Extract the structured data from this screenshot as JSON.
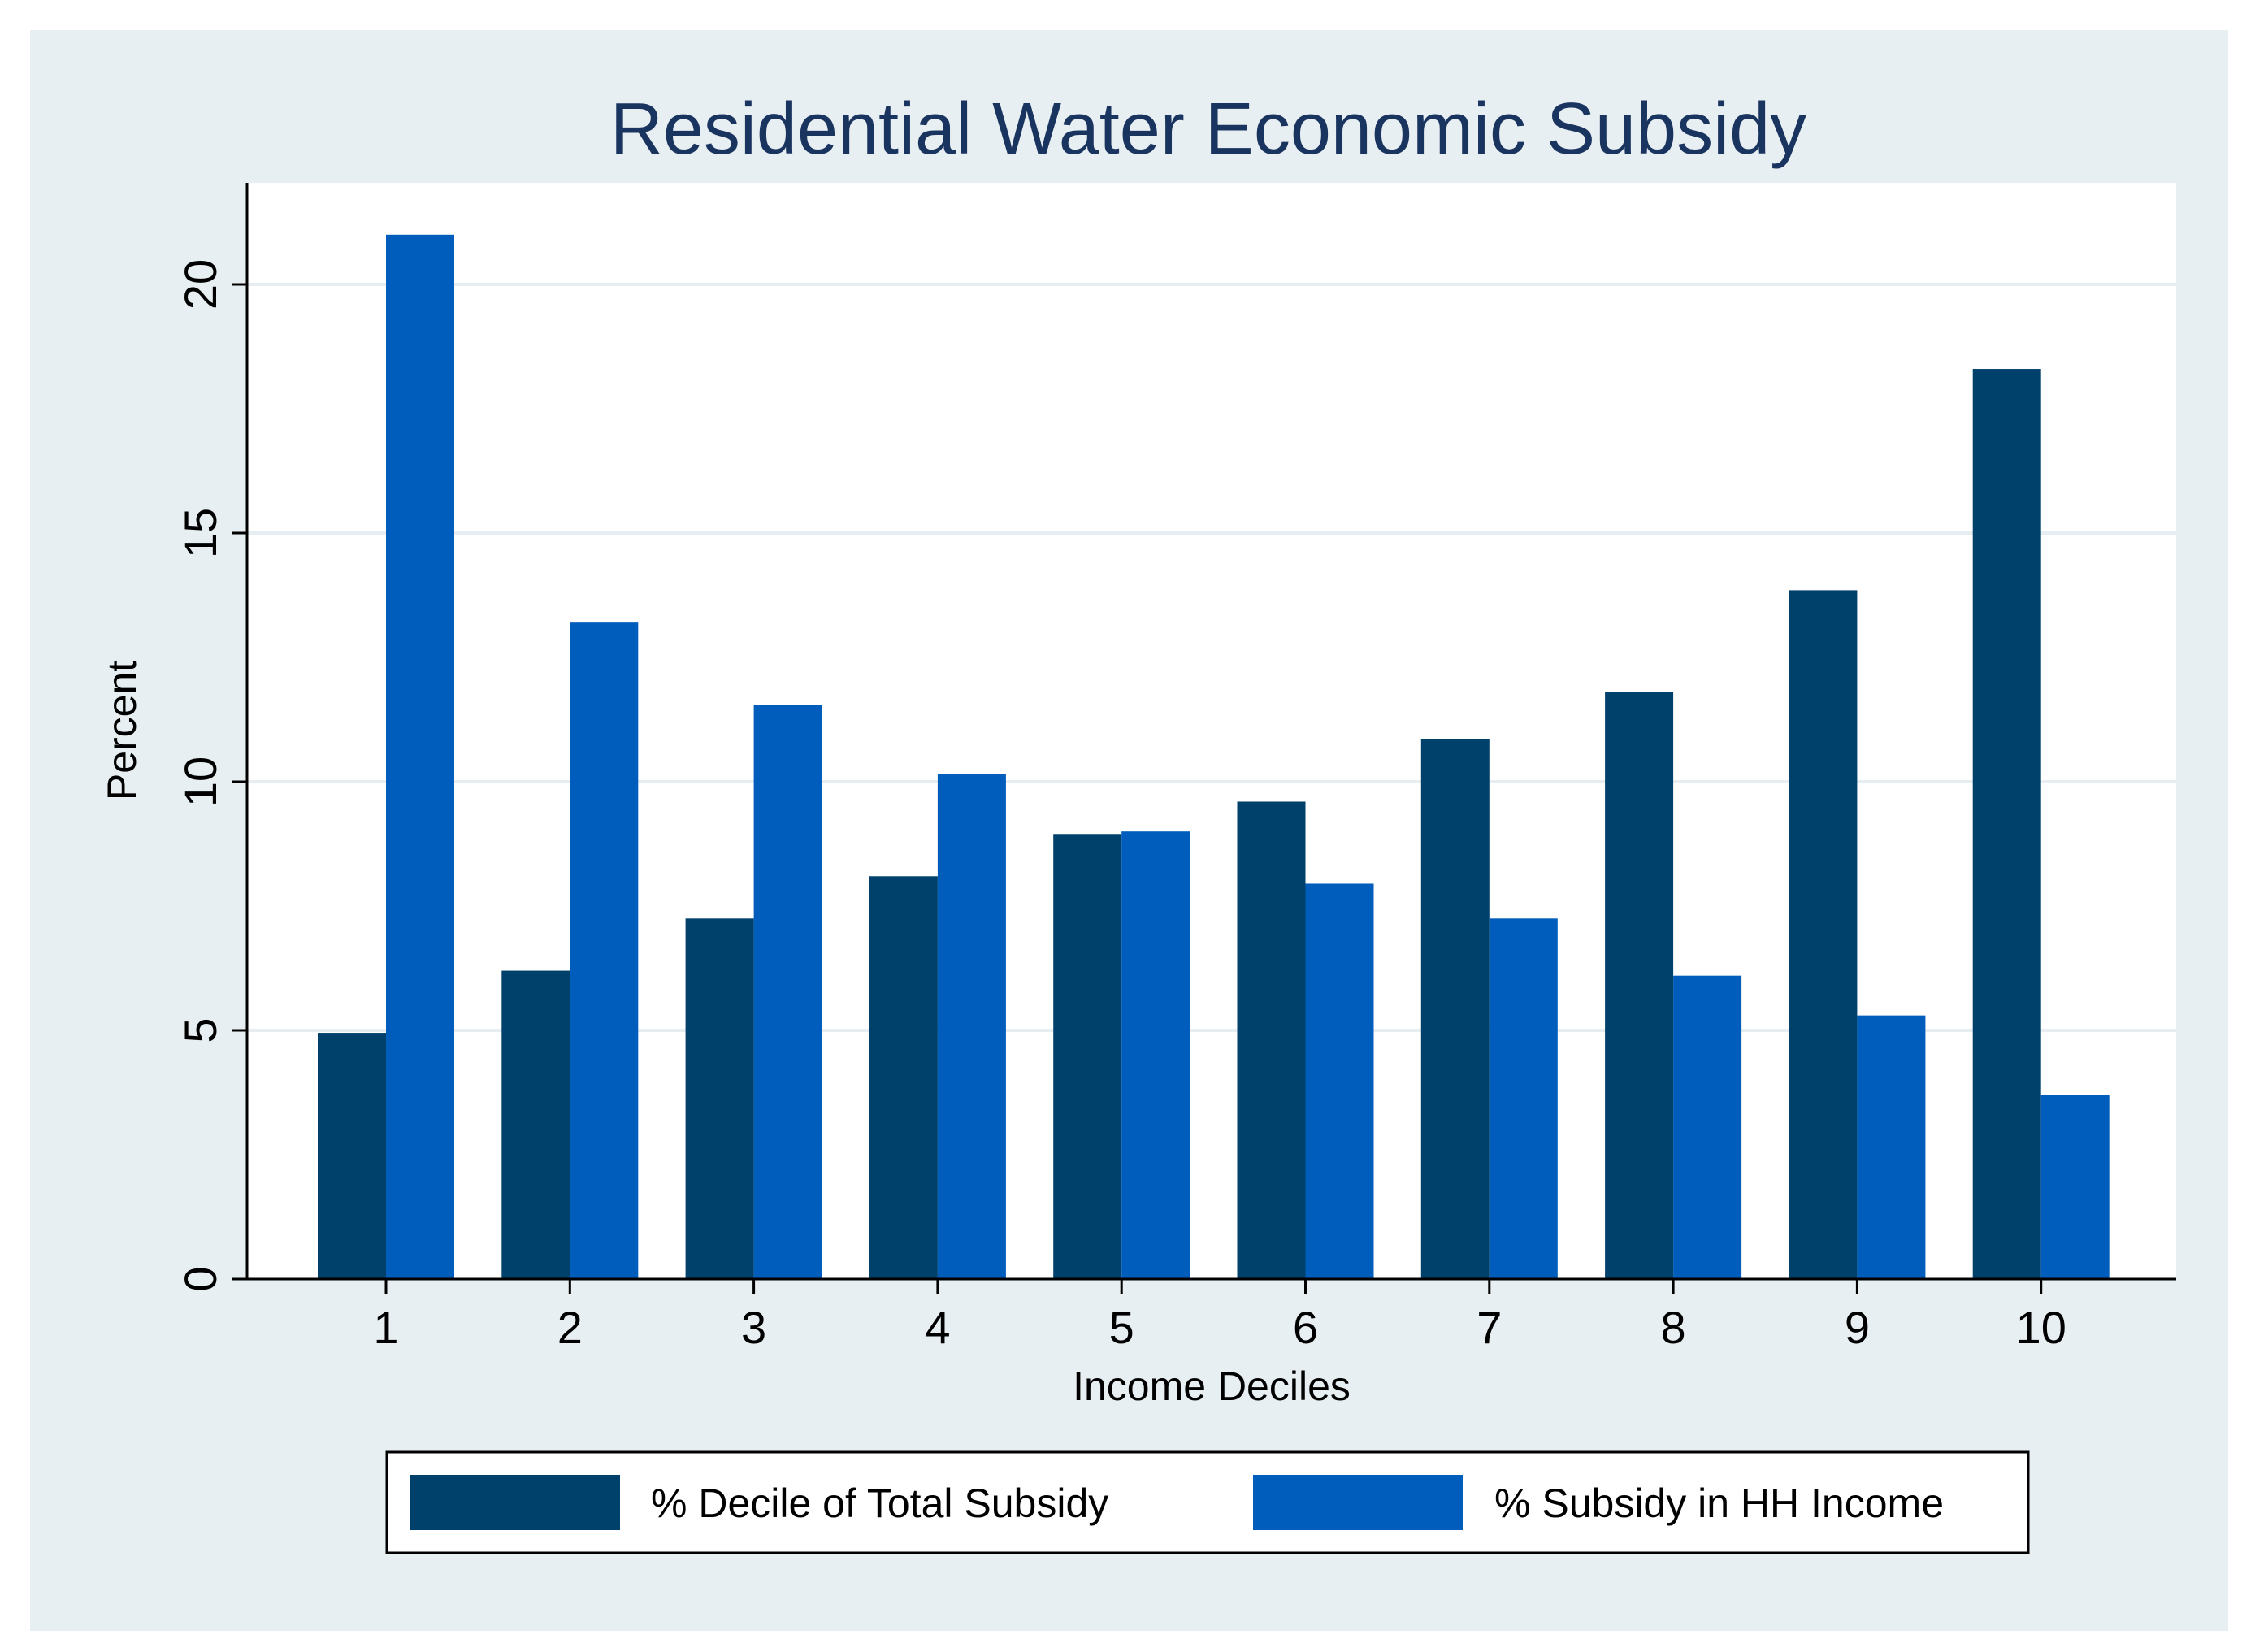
{
  "chart_data": {
    "type": "bar",
    "title": "Residential Water Economic Subsidy",
    "xlabel": "Income Deciles",
    "ylabel": "Percent",
    "categories": [
      "1",
      "2",
      "3",
      "4",
      "5",
      "6",
      "7",
      "8",
      "9",
      "10"
    ],
    "ylim": [
      0,
      22
    ],
    "yticks": [
      0,
      5,
      10,
      15,
      20
    ],
    "ytick_labels": [
      "0",
      "5",
      "10",
      "15",
      "20"
    ],
    "grid": true,
    "legend_position": "bottom",
    "series": [
      {
        "name": "% Decile of Total Subsidy",
        "color": "#00416b",
        "values": [
          4.95,
          6.2,
          7.25,
          8.1,
          8.95,
          9.6,
          10.85,
          11.8,
          13.85,
          18.3
        ]
      },
      {
        "name": "% Subsidy in HH Income",
        "color": "#005dbb",
        "values": [
          21.0,
          13.2,
          11.55,
          10.15,
          9.0,
          7.95,
          7.25,
          6.1,
          5.3,
          3.7
        ]
      }
    ]
  }
}
